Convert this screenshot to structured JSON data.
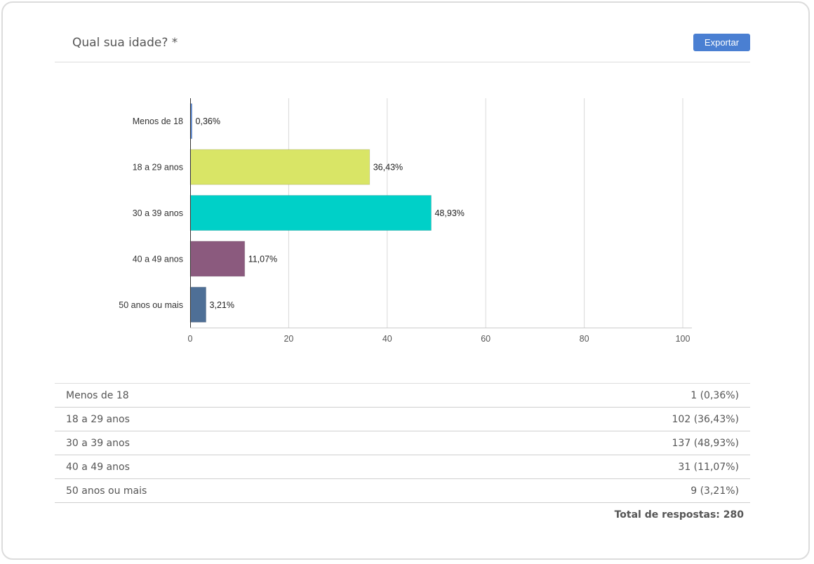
{
  "header": {
    "title": "Qual sua idade? *",
    "export_label": "Exportar"
  },
  "chart_data": {
    "type": "bar",
    "orientation": "horizontal",
    "categories": [
      "Menos de 18",
      "18 a 29 anos",
      "30 a 39 anos",
      "40 a 49 anos",
      "50 anos ou mais"
    ],
    "values": [
      0.36,
      36.43,
      48.93,
      11.07,
      3.21
    ],
    "data_labels": [
      "0,36%",
      "36,43%",
      "48,93%",
      "11,07%",
      "3,21%"
    ],
    "colors": [
      "#4a7fd2",
      "#d9e566",
      "#00d0c8",
      "#8b5a7e",
      "#4e6f96"
    ],
    "xlim": [
      0,
      100
    ],
    "xticks": [
      0,
      20,
      40,
      60,
      80,
      100
    ],
    "grid": true,
    "legend": "none"
  },
  "table": {
    "rows": [
      {
        "label": "Menos de 18",
        "value": "1 (0,36%)"
      },
      {
        "label": "18 a 29 anos",
        "value": "102 (36,43%)"
      },
      {
        "label": "30 a 39 anos",
        "value": "137 (48,93%)"
      },
      {
        "label": "40 a 49 anos",
        "value": "31 (11,07%)"
      },
      {
        "label": "50 anos ou mais",
        "value": "9 (3,21%)"
      }
    ],
    "total": "Total de respostas: 280"
  }
}
